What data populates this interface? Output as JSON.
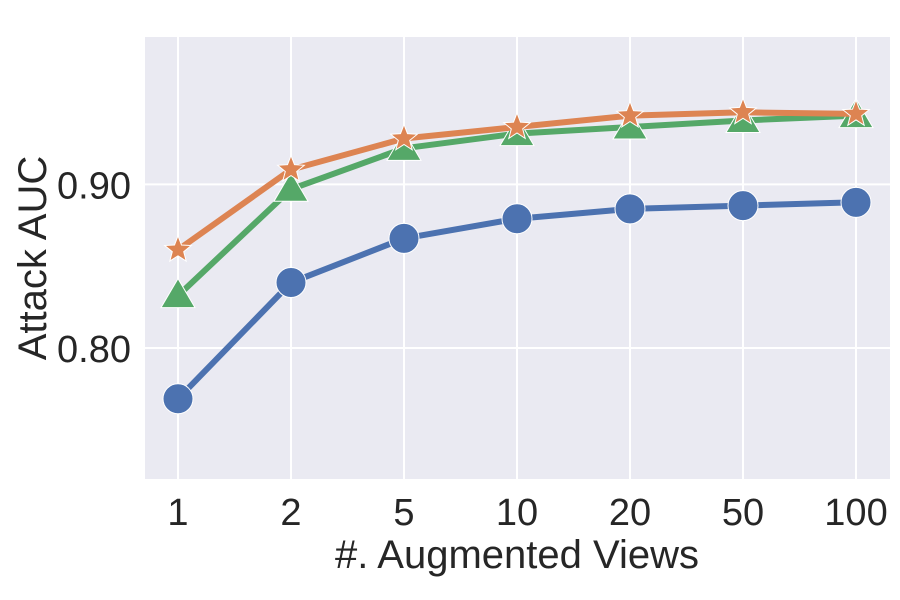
{
  "chart_data": {
    "type": "line",
    "title": "",
    "xlabel": "#. Augmented Views",
    "ylabel": "Attack AUC",
    "categories": [
      "1",
      "2",
      "5",
      "10",
      "20",
      "50",
      "100"
    ],
    "yticks": [
      "0.80",
      "0.90"
    ],
    "ytick_values": [
      0.8,
      0.9
    ],
    "ylim": [
      0.72,
      0.99
    ],
    "grid": true,
    "legend": "none",
    "background": "#eaeaf2",
    "grid_color": "#ffffff",
    "series": [
      {
        "color": "#4c72b0",
        "marker": "circle",
        "values": [
          0.769,
          0.84,
          0.867,
          0.879,
          0.885,
          0.887,
          0.889
        ]
      },
      {
        "color": "#55a868",
        "marker": "triangle",
        "values": [
          0.832,
          0.897,
          0.922,
          0.931,
          0.935,
          0.939,
          0.942
        ]
      },
      {
        "color": "#dd8452",
        "marker": "star",
        "values": [
          0.86,
          0.909,
          0.928,
          0.935,
          0.942,
          0.944,
          0.943
        ]
      }
    ]
  }
}
